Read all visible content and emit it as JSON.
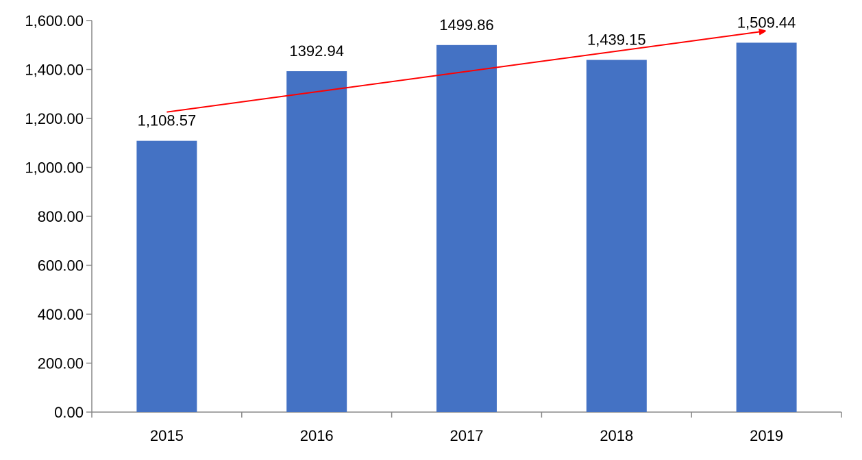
{
  "chart_data": {
    "type": "bar",
    "categories": [
      "2015",
      "2016",
      "2017",
      "2018",
      "2019"
    ],
    "values": [
      1108.57,
      1392.94,
      1499.86,
      1439.15,
      1509.44
    ],
    "data_labels": [
      "1,108.57",
      "1392.94",
      "1499.86",
      "1,439.15",
      "1,509.44"
    ],
    "yticks": [
      "0.00",
      "200.00",
      "400.00",
      "600.00",
      "800.00",
      "1,000.00",
      "1,200.00",
      "1,400.00",
      "1,600.00"
    ],
    "ylim": [
      0,
      1600
    ],
    "title": "",
    "xlabel": "",
    "ylabel": "",
    "grid": false,
    "legend": "none",
    "bar_color": "#4472C4",
    "trend_arrow": {
      "color": "#FF0000",
      "from_category": "2015",
      "to_category": "2019"
    }
  }
}
